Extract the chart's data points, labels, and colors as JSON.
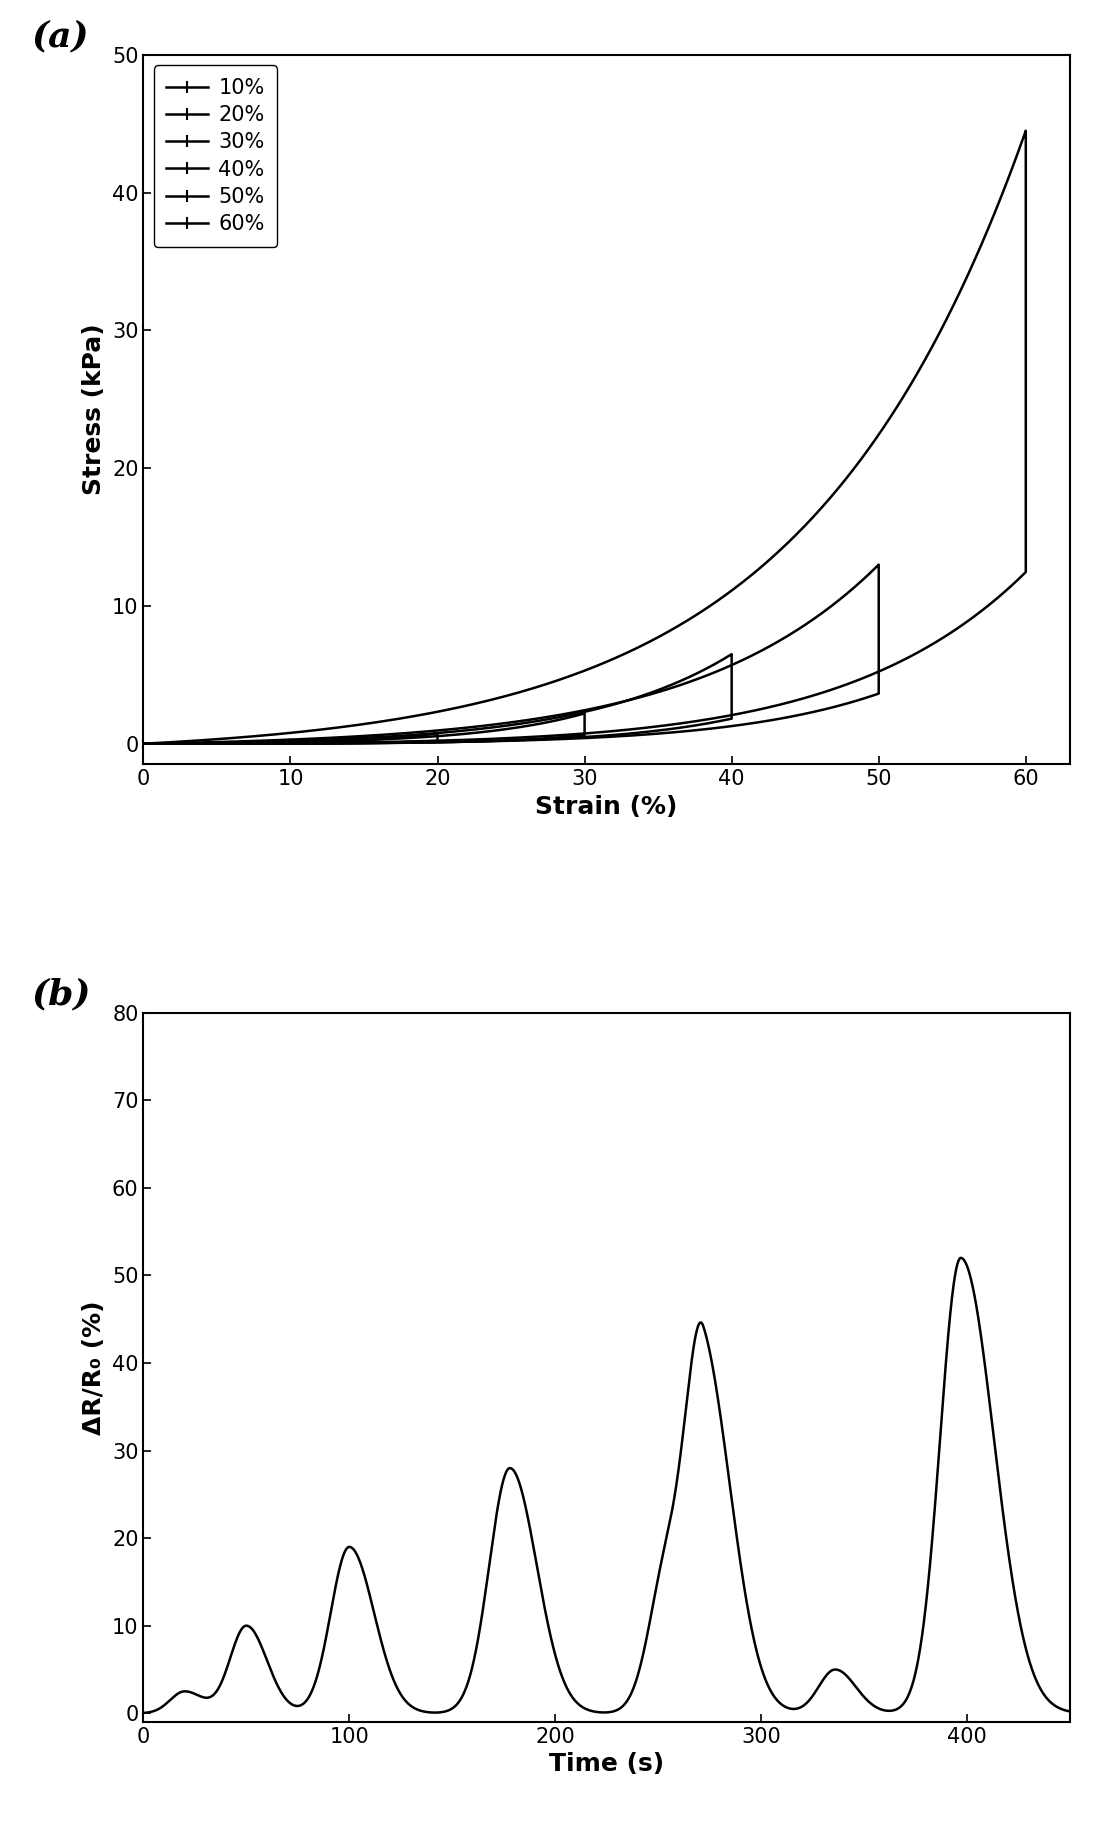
{
  "panel_a": {
    "title": "(a)",
    "xlabel": "Strain (%)",
    "ylabel": "Stress (kPa)",
    "xlim": [
      0,
      63
    ],
    "ylim": [
      -1.5,
      50
    ],
    "xticks": [
      0,
      10,
      20,
      30,
      40,
      50,
      60
    ],
    "yticks": [
      0,
      10,
      20,
      30,
      40,
      50
    ],
    "legend_labels": [
      "10%",
      "20%",
      "30%",
      "40%",
      "50%",
      "60%"
    ],
    "strain_max": [
      10,
      20,
      30,
      40,
      50,
      60
    ],
    "stress_max": [
      0.28,
      0.75,
      2.2,
      6.5,
      13.0,
      44.5
    ]
  },
  "panel_b": {
    "title": "(b)",
    "xlabel": "Time (s)",
    "ylabel": "ΔR/R₀ (%)",
    "xlim": [
      0,
      450
    ],
    "ylim": [
      -1,
      80
    ],
    "xticks": [
      0,
      100,
      200,
      300,
      400
    ],
    "yticks": [
      0,
      10,
      20,
      30,
      40,
      50,
      60,
      70,
      80
    ]
  },
  "line_color": "#000000",
  "line_width": 1.8,
  "font_size": 16,
  "label_font_size": 18,
  "tick_font_size": 15,
  "panel_label_font_size": 26
}
